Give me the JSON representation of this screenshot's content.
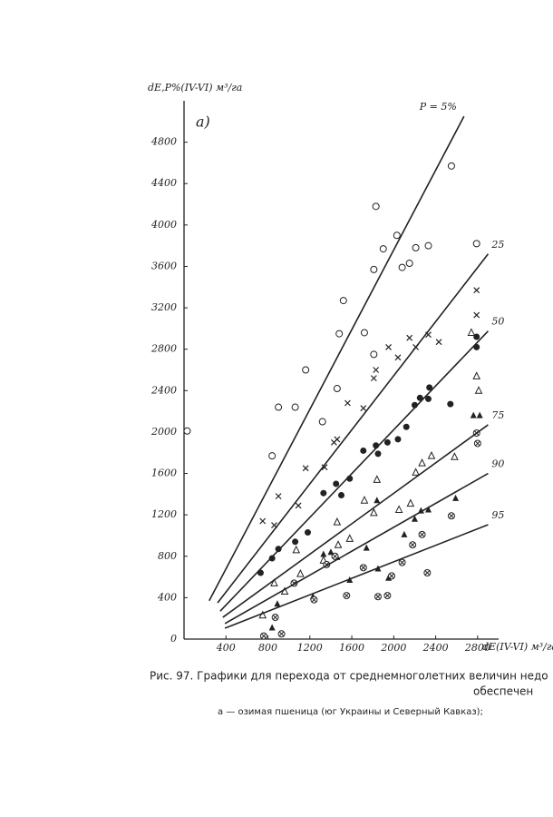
{
  "chart_data": {
    "type": "scatter",
    "y_label": "dE,P%(IV-VI) м³/га",
    "x_label": "dE(IV-VI) м³/га",
    "panel_label": "а)",
    "caption": [
      "Рис. 97. Графики для перехода от среднемноголетних величин недо",
      "обеспечен",
      "а — озимая пшеница (юг Украины и Северный Кавказ);"
    ],
    "xlim": [
      0,
      3000
    ],
    "ylim": [
      0,
      5200
    ],
    "xticks": [
      400,
      800,
      1200,
      1600,
      2000,
      2400,
      2800
    ],
    "yticks": [
      0,
      400,
      800,
      1200,
      1600,
      2000,
      2400,
      2800,
      3200,
      3600,
      4000,
      4400,
      4800
    ],
    "color": "#222222",
    "series": [
      {
        "marker": "open-circle",
        "x": [
          30,
          840,
          900,
          1060,
          1160,
          1320,
          1460,
          1480,
          1520,
          1720,
          1810,
          1810,
          1830,
          1900,
          2030,
          2080,
          2150,
          2210,
          2330,
          2550,
          2790
        ],
        "values": [
          2010,
          1770,
          2240,
          2240,
          2600,
          2100,
          2420,
          2950,
          3270,
          2960,
          2750,
          3570,
          4180,
          3770,
          3900,
          3590,
          3630,
          3780,
          3800,
          4570,
          3820
        ]
      },
      {
        "marker": "cross",
        "x": [
          750,
          860,
          900,
          1090,
          1160,
          1340,
          1430,
          1460,
          1560,
          1710,
          1810,
          1830,
          1950,
          2040,
          2150,
          2210,
          2330,
          2430,
          2790,
          2790
        ],
        "values": [
          1140,
          1100,
          1380,
          1290,
          1650,
          1660,
          1900,
          1930,
          2280,
          2230,
          2520,
          2600,
          2820,
          2720,
          2910,
          2820,
          2940,
          2870,
          3130,
          3370
        ]
      },
      {
        "marker": "filled-circle",
        "x": [
          730,
          840,
          900,
          1060,
          1180,
          1330,
          1450,
          1500,
          1580,
          1710,
          1830,
          1850,
          1940,
          2040,
          2120,
          2200,
          2250,
          2330,
          2340,
          2540,
          2790,
          2790
        ],
        "values": [
          640,
          780,
          870,
          940,
          1030,
          1410,
          1500,
          1390,
          1550,
          1820,
          1870,
          1790,
          1900,
          1930,
          2050,
          2260,
          2330,
          2320,
          2430,
          2270,
          2820,
          2920
        ]
      },
      {
        "marker": "open-triangle",
        "x": [
          750,
          860,
          960,
          1070,
          1110,
          1330,
          1460,
          1470,
          1580,
          1720,
          1810,
          1840,
          2050,
          2160,
          2210,
          2270,
          2360,
          2580,
          2740,
          2790,
          2810
        ],
        "values": [
          230,
          540,
          460,
          860,
          630,
          760,
          1130,
          910,
          970,
          1340,
          1220,
          1540,
          1250,
          1310,
          1610,
          1700,
          1770,
          1760,
          2960,
          2540,
          2400
        ]
      },
      {
        "marker": "filled-triangle",
        "x": [
          840,
          890,
          1230,
          1330,
          1400,
          1460,
          1580,
          1740,
          1840,
          1850,
          1950,
          2100,
          2200,
          2260,
          2330,
          2590,
          2760,
          2820
        ],
        "values": [
          110,
          340,
          410,
          820,
          840,
          790,
          570,
          880,
          1340,
          680,
          590,
          1010,
          1160,
          1240,
          1250,
          1360,
          2160,
          2160
        ]
      },
      {
        "marker": "circled-cross",
        "x": [
          760,
          870,
          930,
          1050,
          1240,
          1360,
          1440,
          1550,
          1710,
          1850,
          1940,
          1980,
          2080,
          2180,
          2270,
          2320,
          2550,
          2790,
          2800
        ],
        "values": [
          30,
          210,
          50,
          540,
          380,
          720,
          800,
          420,
          690,
          410,
          420,
          610,
          740,
          910,
          1010,
          640,
          1190,
          1990,
          1890
        ]
      },
      {
        "name": "P = 5%",
        "marker": "line",
        "x": [
          240,
          2670
        ],
        "values": [
          370,
          5050
        ]
      },
      {
        "name": "25",
        "marker": "line",
        "x": [
          320,
          2900
        ],
        "values": [
          350,
          3720
        ]
      },
      {
        "name": "50",
        "marker": "line",
        "x": [
          345,
          2900
        ],
        "values": [
          270,
          2975
        ]
      },
      {
        "name": "75",
        "marker": "line",
        "x": [
          370,
          2900
        ],
        "values": [
          210,
          2070
        ]
      },
      {
        "name": "90",
        "marker": "line",
        "x": [
          390,
          2900
        ],
        "values": [
          150,
          1600
        ]
      },
      {
        "name": "95",
        "marker": "line",
        "x": [
          390,
          2900
        ],
        "values": [
          105,
          1105
        ]
      }
    ]
  }
}
